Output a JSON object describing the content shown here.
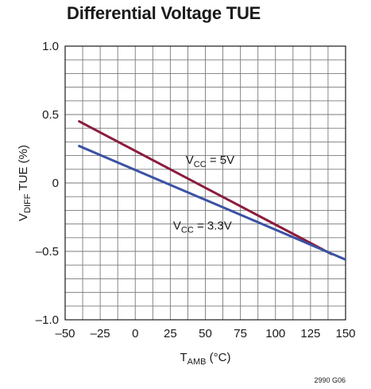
{
  "chart_data": {
    "type": "line",
    "title": "Differential Voltage TUE",
    "xlabel": {
      "main": "T",
      "sub": "AMB",
      "unit": " (°C)"
    },
    "ylabel": {
      "main": "V",
      "sub": "DIFF",
      "unit": " TUE (%)"
    },
    "xlim": [
      -50,
      150
    ],
    "ylim": [
      -1.0,
      1.0
    ],
    "x_ticks": [
      -50,
      -25,
      0,
      25,
      50,
      75,
      100,
      125,
      150
    ],
    "x_tick_labels": [
      "–50",
      "–25",
      "0",
      "25",
      "50",
      "75",
      "100",
      "125",
      "150"
    ],
    "y_ticks": [
      -1.0,
      -0.5,
      0,
      0.5,
      1.0
    ],
    "y_tick_labels": [
      "–1.0",
      "–0.5",
      "0",
      "0.5",
      "1.0"
    ],
    "grid": true,
    "series": [
      {
        "label": {
          "main": "V",
          "sub": "CC",
          "rest": " = 5V"
        },
        "color": "#8b1c3c",
        "x": [
          -40,
          140
        ],
        "y": [
          0.45,
          -0.52
        ]
      },
      {
        "label": {
          "main": "V",
          "sub": "CC",
          "rest": " = 3.3V"
        },
        "color": "#3a52a4",
        "x": [
          -40,
          150
        ],
        "y": [
          0.27,
          -0.56
        ]
      }
    ],
    "annotations": [
      {
        "series": 0,
        "x": 36,
        "y": 0.17
      },
      {
        "series": 1,
        "x": 27,
        "y": -0.31
      }
    ],
    "figure_code": "2990 G06"
  }
}
